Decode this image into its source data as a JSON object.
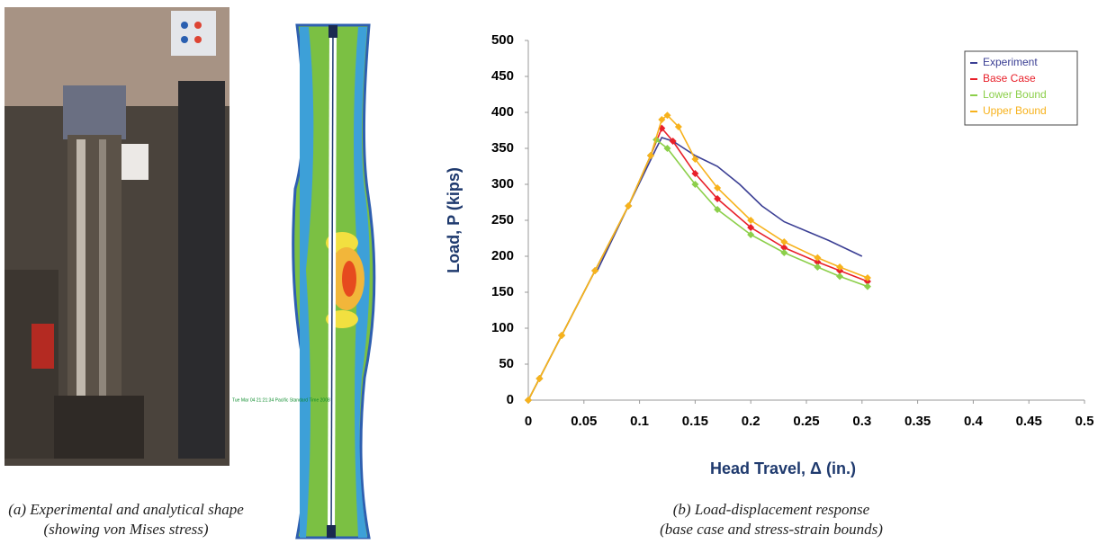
{
  "chart_data": {
    "type": "line",
    "y_label": "Load, P (kips)",
    "x_label": "Head Travel, Δ (in.)",
    "xlim": [
      0,
      0.5
    ],
    "xticks": [
      0,
      0.05,
      0.1,
      0.15,
      0.2,
      0.25,
      0.3,
      0.35,
      0.4,
      0.45,
      0.5
    ],
    "ylim": [
      0,
      500
    ],
    "yticks": [
      0,
      50,
      100,
      150,
      200,
      250,
      300,
      350,
      400,
      450,
      500
    ],
    "grid": false,
    "legend": "upper right",
    "series": [
      {
        "name": "Experiment",
        "color": "#3b3f94",
        "marker": "none",
        "x": [
          0,
          0.03,
          0.06,
          0.062,
          0.09,
          0.115,
          0.12,
          0.13,
          0.15,
          0.17,
          0.19,
          0.21,
          0.23,
          0.25,
          0.27,
          0.3
        ],
        "values": [
          0,
          90,
          180,
          180,
          270,
          350,
          365,
          360,
          340,
          325,
          300,
          270,
          248,
          235,
          222,
          200
        ]
      },
      {
        "name": "Base Case",
        "color": "#e8202a",
        "marker": "diamond",
        "x": [
          0,
          0.01,
          0.03,
          0.06,
          0.09,
          0.11,
          0.12,
          0.13,
          0.15,
          0.17,
          0.2,
          0.23,
          0.26,
          0.28,
          0.305
        ],
        "values": [
          0,
          30,
          90,
          180,
          270,
          340,
          378,
          360,
          315,
          280,
          240,
          212,
          192,
          180,
          165
        ]
      },
      {
        "name": "Lower Bound",
        "color": "#8ccf4a",
        "marker": "diamond",
        "x": [
          0,
          0.01,
          0.03,
          0.06,
          0.09,
          0.11,
          0.115,
          0.125,
          0.15,
          0.17,
          0.2,
          0.23,
          0.26,
          0.28,
          0.305
        ],
        "values": [
          0,
          30,
          90,
          180,
          270,
          340,
          362,
          350,
          300,
          265,
          230,
          205,
          185,
          172,
          158
        ]
      },
      {
        "name": "Upper Bound",
        "color": "#f7b21c",
        "marker": "diamond",
        "x": [
          0,
          0.01,
          0.03,
          0.06,
          0.09,
          0.11,
          0.12,
          0.125,
          0.135,
          0.15,
          0.17,
          0.2,
          0.23,
          0.26,
          0.28,
          0.305
        ],
        "values": [
          0,
          30,
          90,
          180,
          270,
          340,
          390,
          396,
          380,
          335,
          295,
          250,
          220,
          198,
          185,
          170
        ]
      }
    ]
  },
  "figure": {
    "fe_timestamp": "Tue Mar 04 21:21:34 Pacific Standard Time 2008",
    "caption_a": [
      "(a)  Experimental and analytical shape",
      "(showing von Mises stress)"
    ],
    "caption_b": [
      "(b)  Load-displacement response",
      "(base case and stress-strain bounds)"
    ]
  }
}
